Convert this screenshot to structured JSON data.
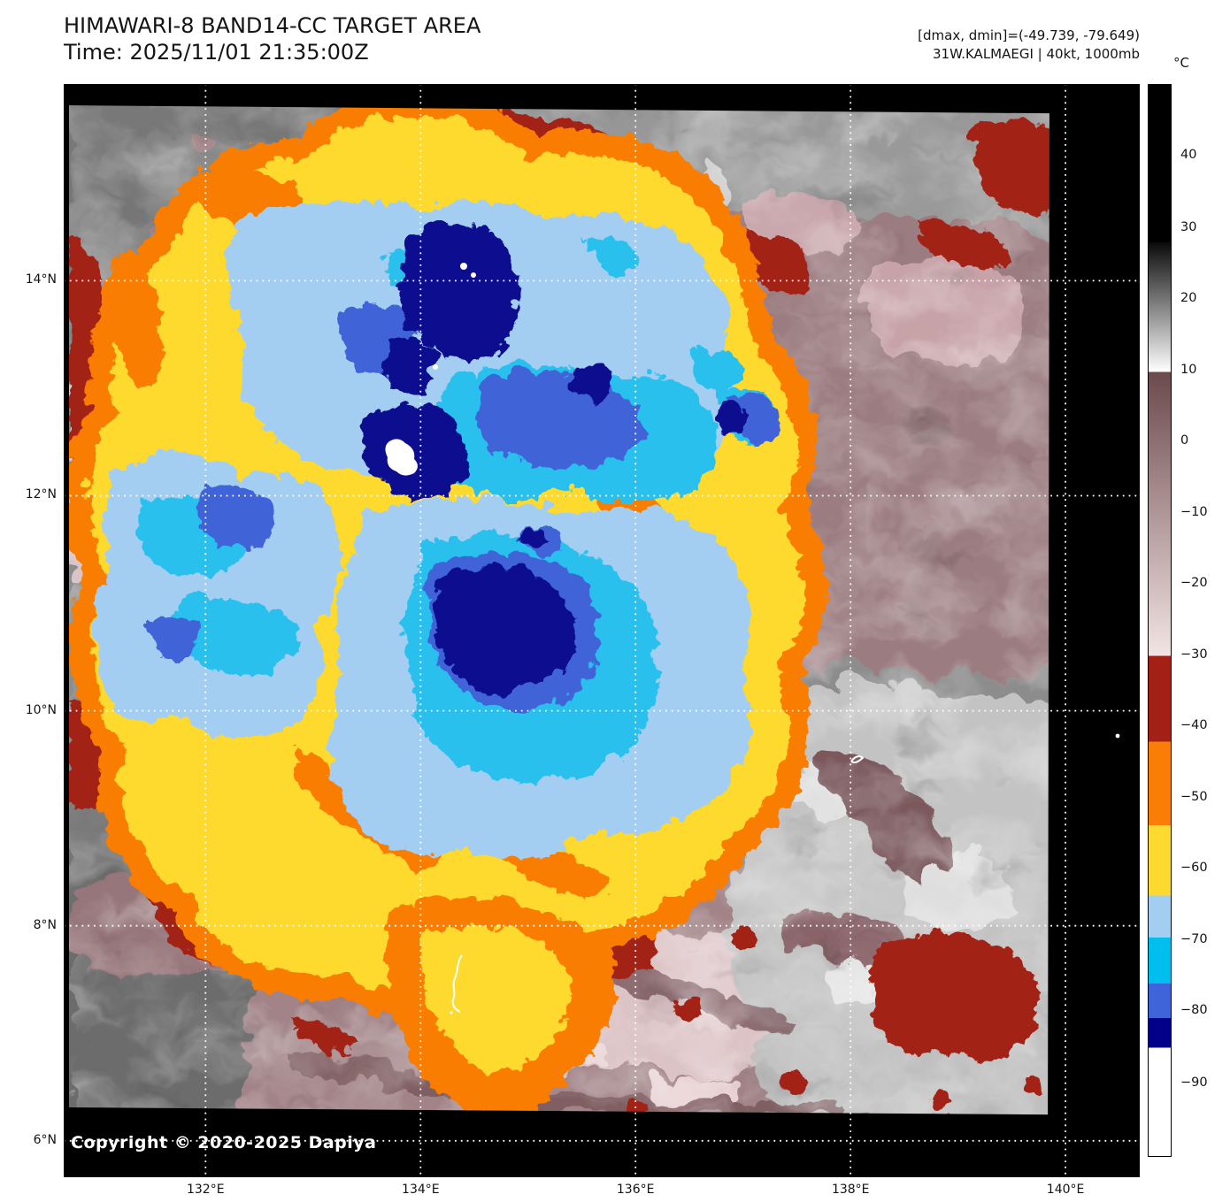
{
  "header": {
    "title": "HIMAWARI-8 BAND14-CC TARGET AREA",
    "time": "Time: 2025/11/01 21:35:00Z"
  },
  "annotations": {
    "line1": "[dmax, dmin]=(-49.739, -79.649)",
    "line2": "31W.KALMAEGI | 40kt, 1000mb"
  },
  "map": {
    "copyright": "Copyright © 2020-2025 Dapiya",
    "gridline_color": "#ffffff",
    "palette": {
      "navy": "#0a1190",
      "royal_blue": "#3f63d8",
      "cyan": "#2cc0ed",
      "light_blue": "#a4cef1",
      "yellow": "#fed92f",
      "orange": "#f97d06",
      "dark_red": "#a32017",
      "mauve": "#9b7c80",
      "pale_pink": "#dcc3c6",
      "silver": "#c6c6c6",
      "gray": "#8c8c8c",
      "no_data_black": "#000000",
      "coastline_white": "#ffffff"
    }
  },
  "colorbar": {
    "unit": "°C",
    "ticks": [
      {
        "label": "40",
        "pct": 6.8
      },
      {
        "label": "30",
        "pct": 13.5
      },
      {
        "label": "20",
        "pct": 20.1
      },
      {
        "label": "10",
        "pct": 26.8
      },
      {
        "label": "0",
        "pct": 33.4
      },
      {
        "label": "−10",
        "pct": 40.1
      },
      {
        "label": "−20",
        "pct": 46.7
      },
      {
        "label": "−30",
        "pct": 53.3
      },
      {
        "label": "−40",
        "pct": 59.9
      },
      {
        "label": "−50",
        "pct": 66.6
      },
      {
        "label": "−60",
        "pct": 73.2
      },
      {
        "label": "−70",
        "pct": 79.9
      },
      {
        "label": "−80",
        "pct": 86.5
      },
      {
        "label": "−90",
        "pct": 93.2
      }
    ],
    "bands": [
      {
        "p0": 0,
        "p1": 14.7,
        "c0": "#000000",
        "c1": "#000000"
      },
      {
        "p0": 14.7,
        "p1": 26.8,
        "c0": "#0a0a0a",
        "c1": "#ffffff"
      },
      {
        "p0": 26.8,
        "p1": 53.3,
        "c0": "#6b4a4c",
        "c1": "#f2e4e4"
      },
      {
        "p0": 53.3,
        "p1": 61.3,
        "c0": "#a32017",
        "c1": "#a32017"
      },
      {
        "p0": 61.3,
        "p1": 69.1,
        "c0": "#f97d06",
        "c1": "#f97d06"
      },
      {
        "p0": 69.1,
        "p1": 75.7,
        "c0": "#fed92f",
        "c1": "#fed92f"
      },
      {
        "p0": 75.7,
        "p1": 79.6,
        "c0": "#a4cef1",
        "c1": "#a4cef1"
      },
      {
        "p0": 79.6,
        "p1": 83.9,
        "c0": "#00bfef",
        "c1": "#00bfef"
      },
      {
        "p0": 83.9,
        "p1": 87.1,
        "c0": "#3f63d8",
        "c1": "#3f63d8"
      },
      {
        "p0": 87.1,
        "p1": 89.9,
        "c0": "#00008b",
        "c1": "#00008b"
      },
      {
        "p0": 89.9,
        "p1": 100,
        "c0": "#ffffff",
        "c1": "#ffffff"
      }
    ]
  },
  "axes": {
    "lon_ticks": [
      {
        "label": "132°E",
        "pct": 13.18
      },
      {
        "label": "134°E",
        "pct": 33.17
      },
      {
        "label": "136°E",
        "pct": 53.14
      },
      {
        "label": "138°E",
        "pct": 73.13
      },
      {
        "label": "140°E",
        "pct": 93.1
      }
    ],
    "lat_ticks": [
      {
        "label": "14°N",
        "pct": 18.0
      },
      {
        "label": "12°N",
        "pct": 37.66
      },
      {
        "label": "10°N",
        "pct": 57.33
      },
      {
        "label": "8°N",
        "pct": 77.0
      },
      {
        "label": "6°N",
        "pct": 96.67
      }
    ]
  }
}
